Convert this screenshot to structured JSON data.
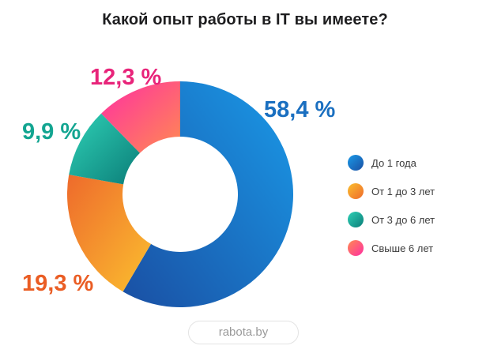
{
  "title": "Какой опыт работы в IT вы имеете?",
  "source": "rabota.by",
  "chart_data": {
    "type": "pie",
    "donut": true,
    "title": "Какой опыт работы в IT вы имеете?",
    "legend_position": "right",
    "categories": [
      "До 1 года",
      "От 1 до 3 лет",
      "От 3 до 6 лет",
      "Свыше 6 лет"
    ],
    "values": [
      58.4,
      19.3,
      9.9,
      12.3
    ],
    "labels": [
      "58,4 %",
      "19,3 %",
      "9,9 %",
      "12,3 %"
    ],
    "colors": [
      {
        "start": "#1a4fa3",
        "end": "#1a9ae8",
        "label": "#1a6fc0"
      },
      {
        "start": "#ee6a2c",
        "end": "#fbbf2f",
        "label": "#ea5d24"
      },
      {
        "start": "#0b7d78",
        "end": "#2fd1b6",
        "label": "#13a591"
      },
      {
        "start": "#ff2fa2",
        "end": "#ff8a52",
        "label": "#e8247a"
      }
    ]
  }
}
